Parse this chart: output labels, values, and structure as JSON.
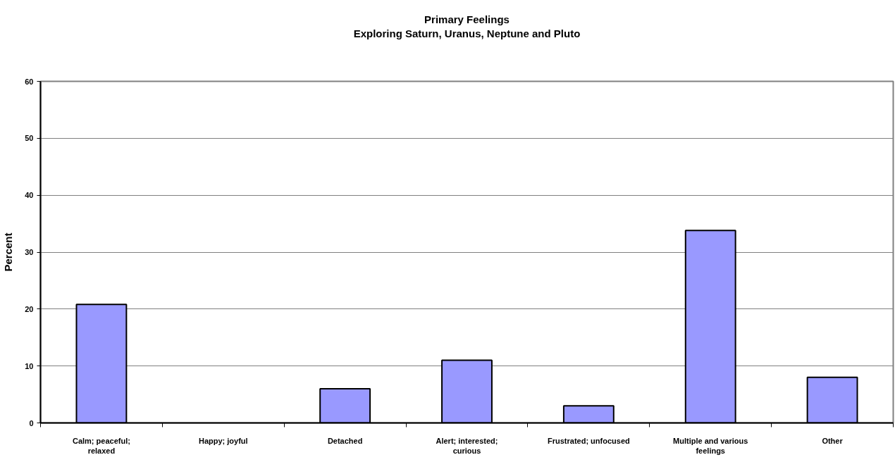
{
  "chart_data": {
    "type": "bar",
    "title": "Primary Feelings",
    "subtitle": "Exploring Saturn, Uranus, Neptune and Pluto",
    "ylabel": "Percent",
    "categories": [
      "Calm; peaceful; relaxed",
      "Happy; joyful",
      "Detached",
      "Alert; interested; curious",
      "Frustrated; unfocused",
      "Multiple and various feelings",
      "Other"
    ],
    "values": [
      20.8,
      0,
      6,
      11,
      3,
      33.8,
      8
    ],
    "color": "#9999ff",
    "ylim": [
      0,
      60
    ],
    "yticks": [
      0,
      10,
      20,
      30,
      40,
      50,
      60
    ],
    "grid": "y"
  }
}
